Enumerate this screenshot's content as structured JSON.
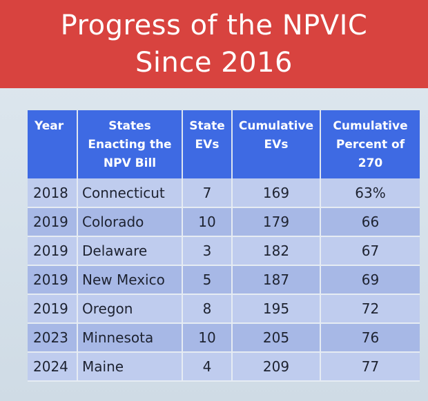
{
  "title": {
    "line1": "Progress of the NPVIC",
    "line2": "Since 2016"
  },
  "table": {
    "headers": {
      "year": [
        "Year"
      ],
      "states": [
        "States",
        "Enacting the",
        "NPV Bill"
      ],
      "state_evs": [
        "State",
        "EVs"
      ],
      "cumulative_evs": [
        "Cumulative",
        "EVs"
      ],
      "cumulative_percent": [
        "Cumulative",
        "Percent of",
        "270"
      ]
    },
    "rows": [
      {
        "year": "2018",
        "state": "Connecticut",
        "evs": "7",
        "cum_evs": "169",
        "pct": "63%"
      },
      {
        "year": "2019",
        "state": "Colorado",
        "evs": "10",
        "cum_evs": "179",
        "pct": "66"
      },
      {
        "year": "2019",
        "state": "Delaware",
        "evs": "3",
        "cum_evs": "182",
        "pct": "67"
      },
      {
        "year": "2019",
        "state": "New Mexico",
        "evs": "5",
        "cum_evs": "187",
        "pct": "69"
      },
      {
        "year": "2019",
        "state": "Oregon",
        "evs": "8",
        "cum_evs": "195",
        "pct": "72"
      },
      {
        "year": "2023",
        "state": "Minnesota",
        "evs": "10",
        "cum_evs": "205",
        "pct": "76"
      },
      {
        "year": "2024",
        "state": "Maine",
        "evs": "4",
        "cum_evs": "209",
        "pct": "77"
      }
    ]
  }
}
